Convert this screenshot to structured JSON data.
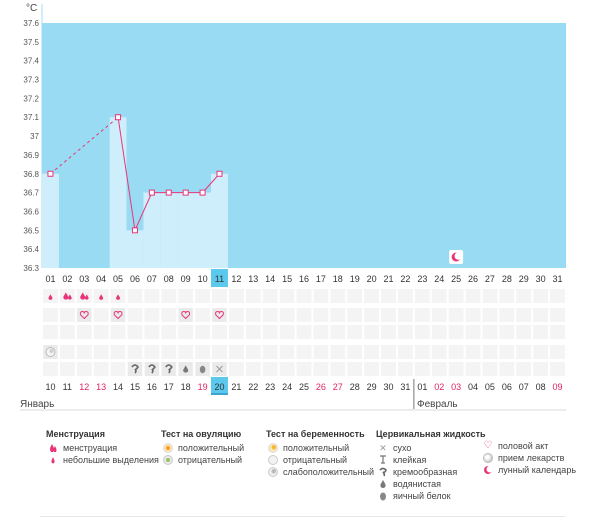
{
  "unit": "°C",
  "y_ticks": [
    "37.6",
    "37.5",
    "37.4",
    "37.3",
    "37.2",
    "37.1",
    "37",
    "36.9",
    "36.8",
    "36.7",
    "36.6",
    "36.5",
    "36.4",
    "36.3"
  ],
  "cycle_days": [
    "01",
    "02",
    "03",
    "04",
    "05",
    "06",
    "07",
    "08",
    "09",
    "10",
    "11",
    "12",
    "13",
    "14",
    "15",
    "16",
    "17",
    "18",
    "19",
    "20",
    "21",
    "22",
    "23",
    "24",
    "25",
    "26",
    "27",
    "28",
    "29",
    "30",
    "31"
  ],
  "current_day_index": 10,
  "calendar_dates": [
    "10",
    "11",
    "12",
    "13",
    "14",
    "15",
    "16",
    "17",
    "18",
    "19",
    "20",
    "21",
    "22",
    "23",
    "24",
    "25",
    "26",
    "27",
    "28",
    "29",
    "30",
    "31",
    "01",
    "02",
    "03",
    "04",
    "05",
    "06",
    "07",
    "08",
    "09"
  ],
  "calendar_date_colors": [
    "n",
    "n",
    "r",
    "r",
    "n",
    "n",
    "n",
    "n",
    "n",
    "r",
    "n",
    "n",
    "n",
    "n",
    "n",
    "n",
    "r",
    "r",
    "n",
    "n",
    "n",
    "n",
    "n",
    "r",
    "r",
    "n",
    "n",
    "n",
    "n",
    "n",
    "r"
  ],
  "today_date_index": 10,
  "months": {
    "first": "Январь",
    "second": "Февраль"
  },
  "chart_data": {
    "type": "line",
    "title": "",
    "xlabel": "",
    "ylabel": "°C",
    "ylim": [
      36.3,
      37.6
    ],
    "x": [
      1,
      5,
      6,
      7,
      8,
      9,
      10,
      11
    ],
    "y": [
      36.8,
      37.1,
      36.5,
      36.7,
      36.7,
      36.7,
      36.7,
      36.8
    ],
    "dashed_segment_between_days": [
      1,
      5
    ],
    "line_color": "#e8357a",
    "plot_bg_color": "#98dbf2",
    "bar_color": "#cfeefc"
  },
  "moon_day": 25,
  "rows": {
    "menstruation": [
      {
        "day": 1,
        "kind": "light"
      },
      {
        "day": 2,
        "kind": "heavy"
      },
      {
        "day": 3,
        "kind": "heavy"
      },
      {
        "day": 4,
        "kind": "light"
      },
      {
        "day": 5,
        "kind": "light"
      }
    ],
    "intercourse_days": [
      3,
      5,
      9,
      11
    ],
    "ovulation_test": [
      {
        "day": 1,
        "result": "negative"
      }
    ],
    "cervical_fluid": [
      {
        "day": 6,
        "kind": "creamy"
      },
      {
        "day": 7,
        "kind": "creamy"
      },
      {
        "day": 8,
        "kind": "creamy"
      },
      {
        "day": 9,
        "kind": "watery"
      },
      {
        "day": 10,
        "kind": "egg-white"
      },
      {
        "day": 11,
        "kind": "dry"
      }
    ]
  },
  "legend": {
    "menstruation": {
      "title": "Менструация",
      "items": [
        {
          "icon": "drop-heavy-icon",
          "label": "менструация"
        },
        {
          "icon": "drop-light-icon",
          "label": "небольшие выделения"
        }
      ]
    },
    "ovulation": {
      "title": "Тест на овуляцию",
      "items": [
        {
          "icon": "ovulation-positive-icon",
          "label": "положительный"
        },
        {
          "icon": "ovulation-negative-icon",
          "label": "отрицательный"
        }
      ]
    },
    "pregnancy": {
      "title": "Тест на беременность",
      "items": [
        {
          "icon": "pregnancy-positive-icon",
          "label": "положительный"
        },
        {
          "icon": "pregnancy-negative-icon",
          "label": "отрицательный"
        },
        {
          "icon": "pregnancy-weak-icon",
          "label": "слабоположительный"
        }
      ]
    },
    "cervical": {
      "title": "Цервикальная жидкость",
      "items": [
        {
          "icon": "dry-icon",
          "label": "сухо"
        },
        {
          "icon": "sticky-icon",
          "label": "клейкая"
        },
        {
          "icon": "creamy-icon",
          "label": "кремообразная"
        },
        {
          "icon": "watery-icon",
          "label": "водянистая"
        },
        {
          "icon": "egg-white-icon",
          "label": "яичный белок"
        }
      ]
    },
    "other": {
      "items": [
        {
          "icon": "heart-icon",
          "label": "половой акт"
        },
        {
          "icon": "pill-icon",
          "label": "прием лекарств"
        },
        {
          "icon": "moon-icon",
          "label": "лунный календарь"
        }
      ]
    }
  },
  "colors": {
    "accent": "#e8357a",
    "red_date": "#e0245e",
    "today_bg": "#5bc8ee",
    "cell_bg": "#f4f4f4"
  }
}
